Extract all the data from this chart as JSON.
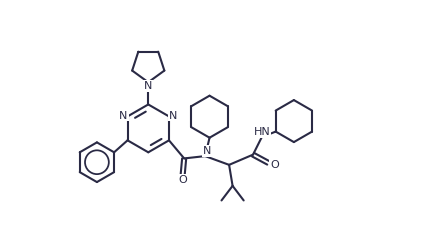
{
  "background_color": "#ffffff",
  "line_color": "#2a2a45",
  "line_width": 1.5,
  "figsize": [
    4.22,
    2.48
  ],
  "dpi": 100,
  "xlim": [
    0,
    10.5
  ],
  "ylim": [
    -2.0,
    6.5
  ]
}
